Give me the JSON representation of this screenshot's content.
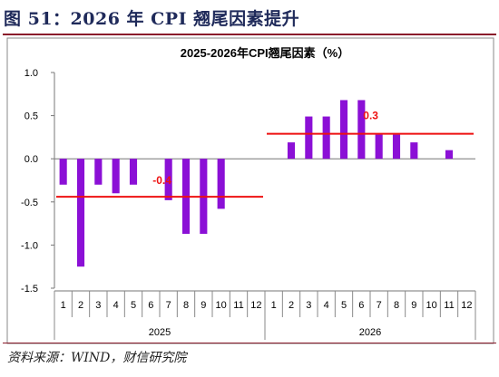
{
  "figure": {
    "title": "图 51：2026 年 CPI 翘尾因素提升",
    "source": "资料来源：WIND，财信研究院"
  },
  "chart_data": {
    "type": "bar",
    "title": "2025-2026年CPI翘尾因素（%）",
    "xlabel": "",
    "ylabel": "",
    "ylim": [
      -1.5,
      1.0
    ],
    "yticks": [
      "1.0",
      "0.5",
      "0.0",
      "-0.5",
      "-1.0",
      "-1.5"
    ],
    "ytick_values": [
      1.0,
      0.5,
      0.0,
      -0.5,
      -1.0,
      -1.5
    ],
    "categories": [
      "1",
      "2",
      "3",
      "4",
      "5",
      "6",
      "7",
      "8",
      "9",
      "10",
      "11",
      "12",
      "1",
      "2",
      "3",
      "4",
      "5",
      "6",
      "7",
      "8",
      "9",
      "10",
      "11",
      "12"
    ],
    "groups": [
      {
        "label": "2025",
        "start": 0,
        "end": 11
      },
      {
        "label": "2026",
        "start": 12,
        "end": 23
      }
    ],
    "values": [
      -0.3,
      -1.25,
      -0.3,
      -0.4,
      -0.3,
      0.0,
      -0.48,
      -0.87,
      -0.87,
      -0.58,
      0.0,
      0.0,
      0.0,
      0.19,
      0.49,
      0.49,
      0.68,
      0.68,
      0.28,
      0.28,
      0.19,
      0.0,
      0.1,
      0.0
    ],
    "bar_color": "#8b10d6",
    "averages": [
      {
        "label": "-0.4",
        "value": -0.44,
        "start": 0,
        "end": 11
      },
      {
        "label": "0.3",
        "value": 0.29,
        "start": 12,
        "end": 23
      }
    ],
    "average_color": "#ee1111",
    "grid": false,
    "legend": "none"
  }
}
